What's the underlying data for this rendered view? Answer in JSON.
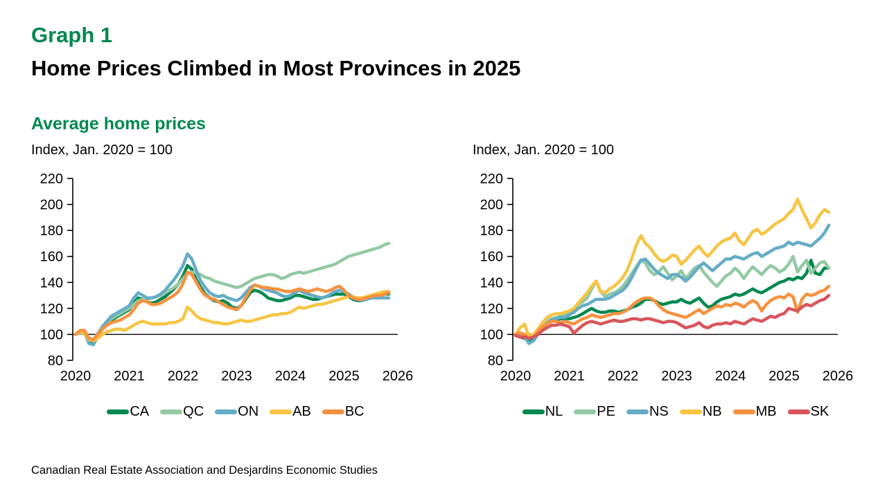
{
  "page": {
    "kicker": "Graph 1",
    "title": "Home Prices Climbed in Most Provinces in 2025",
    "subtitle": "Average home prices",
    "source": "Canadian Real Estate Association and Desjardins Economic Studies"
  },
  "colors": {
    "accent_green": "#00884E",
    "text": "#000000",
    "axis": "#000000"
  },
  "chart_data": [
    {
      "type": "line",
      "axis_note": "Index, Jan. 2020 = 100",
      "x_start_year": 2020,
      "points_per_year": 12,
      "x_ticks": [
        2020,
        2021,
        2022,
        2023,
        2024,
        2025,
        2026
      ],
      "ylim": [
        80,
        220
      ],
      "y_ticks": [
        80,
        100,
        120,
        140,
        160,
        180,
        200,
        220
      ],
      "reference_line_y": 100,
      "grid": false,
      "legend_position": "bottom",
      "series": [
        {
          "name": "CA",
          "color": "#00884E",
          "values": [
            100,
            101,
            101,
            95,
            94,
            99,
            104,
            108,
            111,
            113,
            115,
            117,
            119,
            124,
            128,
            127,
            125,
            124,
            125,
            127,
            129,
            132,
            135,
            139,
            145,
            153,
            150,
            142,
            136,
            131,
            128,
            126,
            125,
            126,
            124,
            121,
            120,
            122,
            127,
            132,
            134,
            133,
            131,
            128,
            127,
            126,
            126,
            127,
            128,
            130,
            130,
            129,
            128,
            127,
            127,
            128,
            129,
            130,
            131,
            131,
            131,
            129,
            127,
            126,
            126,
            127,
            128,
            129,
            130,
            131,
            131
          ]
        },
        {
          "name": "QC",
          "color": "#94C9A3",
          "values": [
            100,
            101,
            101,
            97,
            96,
            101,
            106,
            109,
            112,
            114,
            116,
            118,
            120,
            123,
            126,
            127,
            127,
            128,
            129,
            130,
            132,
            134,
            136,
            139,
            143,
            147,
            148,
            147,
            146,
            144,
            143,
            141,
            140,
            139,
            138,
            137,
            136,
            137,
            139,
            141,
            143,
            144,
            145,
            146,
            146,
            145,
            143,
            144,
            146,
            147,
            148,
            147,
            148,
            149,
            150,
            151,
            152,
            153,
            154,
            156,
            158,
            160,
            161,
            162,
            163,
            164,
            165,
            166,
            167,
            169,
            170
          ]
        },
        {
          "name": "ON",
          "color": "#64ACC8",
          "values": [
            100,
            102,
            102,
            93,
            92,
            99,
            106,
            110,
            114,
            116,
            118,
            120,
            122,
            128,
            132,
            130,
            128,
            128,
            129,
            131,
            134,
            138,
            142,
            147,
            153,
            162,
            158,
            149,
            141,
            136,
            132,
            130,
            129,
            130,
            128,
            127,
            126,
            128,
            132,
            136,
            138,
            137,
            135,
            134,
            133,
            132,
            130,
            129,
            130,
            132,
            134,
            132,
            131,
            130,
            129,
            128,
            129,
            131,
            133,
            134,
            133,
            131,
            129,
            127,
            126,
            127,
            128,
            128,
            128,
            128,
            128
          ]
        },
        {
          "name": "AB",
          "color": "#F7C443",
          "values": [
            100,
            102,
            101,
            96,
            95,
            97,
            100,
            102,
            103,
            104,
            104,
            103,
            105,
            107,
            109,
            110,
            109,
            108,
            108,
            108,
            108,
            109,
            109,
            110,
            112,
            121,
            118,
            114,
            112,
            111,
            110,
            109,
            109,
            108,
            108,
            109,
            110,
            111,
            110,
            110,
            111,
            112,
            113,
            114,
            115,
            115,
            116,
            116,
            117,
            119,
            121,
            120,
            121,
            122,
            123,
            123,
            124,
            125,
            126,
            127,
            128,
            129,
            129,
            128,
            128,
            129,
            130,
            131,
            132,
            133,
            133
          ]
        },
        {
          "name": "BC",
          "color": "#F7913F",
          "values": [
            100,
            103,
            103,
            97,
            96,
            100,
            104,
            107,
            109,
            110,
            111,
            113,
            115,
            119,
            124,
            126,
            125,
            123,
            123,
            124,
            126,
            128,
            130,
            133,
            139,
            148,
            146,
            140,
            134,
            130,
            128,
            127,
            125,
            123,
            121,
            120,
            119,
            122,
            128,
            134,
            138,
            137,
            136,
            136,
            135,
            135,
            134,
            133,
            133,
            134,
            135,
            134,
            133,
            134,
            135,
            134,
            133,
            134,
            136,
            137,
            134,
            130,
            128,
            127,
            127,
            128,
            129,
            130,
            130,
            131,
            132
          ]
        }
      ]
    },
    {
      "type": "line",
      "axis_note": "Index, Jan. 2020 = 100",
      "x_start_year": 2020,
      "points_per_year": 12,
      "x_ticks": [
        2020,
        2021,
        2022,
        2023,
        2024,
        2025,
        2026
      ],
      "ylim": [
        80,
        220
      ],
      "y_ticks": [
        80,
        100,
        120,
        140,
        160,
        180,
        200,
        220
      ],
      "reference_line_y": 100,
      "grid": false,
      "legend_position": "bottom",
      "series": [
        {
          "name": "NL",
          "color": "#00884E",
          "values": [
            100,
            98,
            97,
            95,
            96,
            100,
            105,
            108,
            110,
            111,
            112,
            112,
            112,
            113,
            114,
            116,
            118,
            120,
            118,
            117,
            117,
            118,
            118,
            117,
            118,
            119,
            121,
            122,
            124,
            127,
            127,
            126,
            124,
            123,
            124,
            125,
            125,
            127,
            125,
            124,
            126,
            128,
            124,
            121,
            122,
            125,
            127,
            128,
            129,
            131,
            130,
            131,
            133,
            135,
            133,
            132,
            134,
            136,
            138,
            140,
            141,
            143,
            142,
            144,
            143,
            147,
            157,
            147,
            146,
            151,
            151
          ]
        },
        {
          "name": "PE",
          "color": "#94C9A3",
          "values": [
            100,
            101,
            99,
            97,
            98,
            102,
            107,
            110,
            112,
            113,
            114,
            115,
            117,
            120,
            123,
            125,
            128,
            135,
            141,
            133,
            129,
            131,
            132,
            134,
            137,
            142,
            147,
            152,
            157,
            155,
            149,
            146,
            148,
            152,
            147,
            142,
            145,
            149,
            143,
            147,
            151,
            153,
            148,
            144,
            140,
            137,
            141,
            145,
            147,
            151,
            148,
            143,
            148,
            152,
            149,
            146,
            150,
            153,
            151,
            148,
            150,
            154,
            160,
            148,
            153,
            157,
            147,
            151,
            155,
            156,
            151
          ]
        },
        {
          "name": "NS",
          "color": "#64ACC8",
          "values": [
            100,
            99,
            98,
            93,
            95,
            100,
            105,
            108,
            111,
            112,
            113,
            113,
            115,
            117,
            120,
            122,
            123,
            125,
            127,
            127,
            127,
            128,
            130,
            132,
            134,
            138,
            144,
            151,
            157,
            158,
            154,
            150,
            147,
            145,
            143,
            146,
            146,
            144,
            141,
            144,
            148,
            152,
            155,
            152,
            149,
            152,
            155,
            158,
            158,
            160,
            159,
            158,
            160,
            162,
            163,
            160,
            162,
            164,
            166,
            167,
            168,
            171,
            169,
            171,
            170,
            169,
            168,
            171,
            174,
            178,
            184
          ]
        },
        {
          "name": "NB",
          "color": "#F7C443",
          "values": [
            100,
            105,
            108,
            98,
            100,
            104,
            109,
            113,
            115,
            116,
            116,
            117,
            118,
            120,
            124,
            128,
            132,
            137,
            141,
            133,
            132,
            135,
            137,
            140,
            144,
            150,
            159,
            169,
            176,
            170,
            167,
            162,
            158,
            156,
            158,
            161,
            160,
            154,
            157,
            161,
            165,
            168,
            163,
            160,
            164,
            168,
            171,
            173,
            174,
            178,
            172,
            169,
            174,
            179,
            181,
            177,
            179,
            182,
            185,
            187,
            189,
            193,
            196,
            204,
            196,
            189,
            182,
            186,
            192,
            196,
            194
          ]
        },
        {
          "name": "MB",
          "color": "#F7913F",
          "values": [
            100,
            101,
            100,
            97,
            98,
            102,
            106,
            108,
            110,
            110,
            109,
            110,
            109,
            108,
            110,
            112,
            113,
            115,
            114,
            113,
            114,
            115,
            116,
            116,
            117,
            119,
            122,
            125,
            127,
            128,
            128,
            126,
            122,
            119,
            117,
            116,
            115,
            114,
            113,
            115,
            117,
            119,
            116,
            118,
            120,
            122,
            121,
            123,
            122,
            124,
            123,
            121,
            124,
            126,
            124,
            118,
            123,
            126,
            128,
            129,
            128,
            131,
            129,
            117,
            127,
            131,
            130,
            131,
            133,
            134,
            137
          ]
        },
        {
          "name": "SK",
          "color": "#D8555C",
          "values": [
            99,
            98,
            98,
            97,
            98,
            100,
            103,
            105,
            107,
            107,
            108,
            107,
            106,
            101,
            104,
            107,
            109,
            110,
            109,
            108,
            109,
            110,
            111,
            110,
            110,
            111,
            112,
            112,
            111,
            112,
            112,
            111,
            110,
            109,
            110,
            110,
            109,
            107,
            105,
            106,
            107,
            109,
            106,
            105,
            107,
            108,
            108,
            109,
            108,
            110,
            109,
            108,
            110,
            112,
            111,
            110,
            112,
            114,
            113,
            115,
            116,
            120,
            119,
            118,
            121,
            123,
            122,
            124,
            126,
            127,
            130
          ]
        }
      ]
    }
  ]
}
